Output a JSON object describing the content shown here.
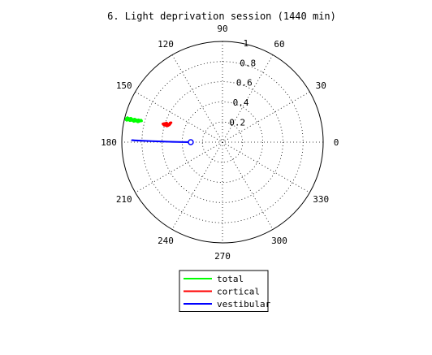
{
  "chart_data": {
    "type": "polar",
    "title": "6. Light deprivation session (1440 min)",
    "radial_range": [
      0,
      1
    ],
    "radial_ticks": [
      {
        "value": 0.2,
        "label": "0.2"
      },
      {
        "value": 0.4,
        "label": "0.4"
      },
      {
        "value": 0.6,
        "label": "0.6"
      },
      {
        "value": 0.8,
        "label": "0.8"
      },
      {
        "value": 1.0,
        "label": "1"
      }
    ],
    "angle_ticks": [
      {
        "deg": 0,
        "label": "0"
      },
      {
        "deg": 30,
        "label": "30"
      },
      {
        "deg": 60,
        "label": "60"
      },
      {
        "deg": 90,
        "label": "90"
      },
      {
        "deg": 120,
        "label": "120"
      },
      {
        "deg": 150,
        "label": "150"
      },
      {
        "deg": 180,
        "label": "180"
      },
      {
        "deg": 210,
        "label": "210"
      },
      {
        "deg": 240,
        "label": "240"
      },
      {
        "deg": 270,
        "label": "270"
      },
      {
        "deg": 300,
        "label": "300"
      },
      {
        "deg": 330,
        "label": "330"
      }
    ],
    "grid": true,
    "legend_position": "bottom",
    "series": [
      {
        "name": "total",
        "color": "#00ff00",
        "style": "trace",
        "points": [
          {
            "r": 0.983,
            "theta": 167.0
          },
          {
            "r": 0.97,
            "theta": 166.0
          },
          {
            "r": 0.955,
            "theta": 166.4
          },
          {
            "r": 0.94,
            "theta": 165.8
          },
          {
            "r": 0.925,
            "theta": 166.2
          },
          {
            "r": 0.91,
            "theta": 165.6
          },
          {
            "r": 0.895,
            "theta": 166.0
          },
          {
            "r": 0.88,
            "theta": 165.4
          },
          {
            "r": 0.866,
            "theta": 165.7
          },
          {
            "r": 0.85,
            "theta": 165.2
          },
          {
            "r": 0.836,
            "theta": 164.8
          },
          {
            "r": 0.83,
            "theta": 165.3
          },
          {
            "r": 0.845,
            "theta": 165.6
          },
          {
            "r": 0.862,
            "theta": 165.0
          },
          {
            "r": 0.88,
            "theta": 165.8
          },
          {
            "r": 0.9,
            "theta": 165.2
          },
          {
            "r": 0.92,
            "theta": 165.9
          },
          {
            "r": 0.94,
            "theta": 165.3
          },
          {
            "r": 0.96,
            "theta": 165.9
          },
          {
            "r": 0.975,
            "theta": 165.5
          },
          {
            "r": 0.985,
            "theta": 166.3
          },
          {
            "r": 0.975,
            "theta": 167.2
          },
          {
            "r": 0.96,
            "theta": 166.5
          },
          {
            "r": 0.945,
            "theta": 167.0
          },
          {
            "r": 0.925,
            "theta": 166.4
          },
          {
            "r": 0.905,
            "theta": 166.9
          },
          {
            "r": 0.885,
            "theta": 166.2
          },
          {
            "r": 0.865,
            "theta": 166.6
          },
          {
            "r": 0.85,
            "theta": 166.0
          }
        ]
      },
      {
        "name": "cortical",
        "color": "#ff0000",
        "style": "trace",
        "points": [
          {
            "r": 0.61,
            "theta": 163.4
          },
          {
            "r": 0.6,
            "theta": 162.6
          },
          {
            "r": 0.59,
            "theta": 163.2
          },
          {
            "r": 0.58,
            "theta": 162.4
          },
          {
            "r": 0.568,
            "theta": 163.0
          },
          {
            "r": 0.555,
            "theta": 162.2
          },
          {
            "r": 0.55,
            "theta": 160.8
          },
          {
            "r": 0.555,
            "theta": 159.8
          },
          {
            "r": 0.545,
            "theta": 159.2
          },
          {
            "r": 0.555,
            "theta": 160.4
          },
          {
            "r": 0.565,
            "theta": 161.6
          },
          {
            "r": 0.575,
            "theta": 162.0
          },
          {
            "r": 0.585,
            "theta": 161.0
          },
          {
            "r": 0.598,
            "theta": 161.8
          },
          {
            "r": 0.61,
            "theta": 162.4
          },
          {
            "r": 0.62,
            "theta": 163.0
          },
          {
            "r": 0.605,
            "theta": 163.8
          },
          {
            "r": 0.59,
            "theta": 163.6
          },
          {
            "r": 0.575,
            "theta": 163.9
          },
          {
            "r": 0.565,
            "theta": 163.2
          }
        ]
      },
      {
        "name": "vestibular",
        "color": "#0000ff",
        "style": "line",
        "points": [
          {
            "r": 0.315,
            "theta": 180.0
          },
          {
            "r": 0.5,
            "theta": 179.6
          },
          {
            "r": 0.7,
            "theta": 179.2
          },
          {
            "r": 0.9,
            "theta": 178.8
          },
          {
            "r": 0.86,
            "theta": 178.9
          },
          {
            "r": 0.6,
            "theta": 179.4
          },
          {
            "r": 0.4,
            "theta": 179.8
          },
          {
            "r": 0.315,
            "theta": 180.0
          }
        ],
        "end_marker": {
          "r": 0.315,
          "theta": 180.0
        }
      }
    ]
  }
}
